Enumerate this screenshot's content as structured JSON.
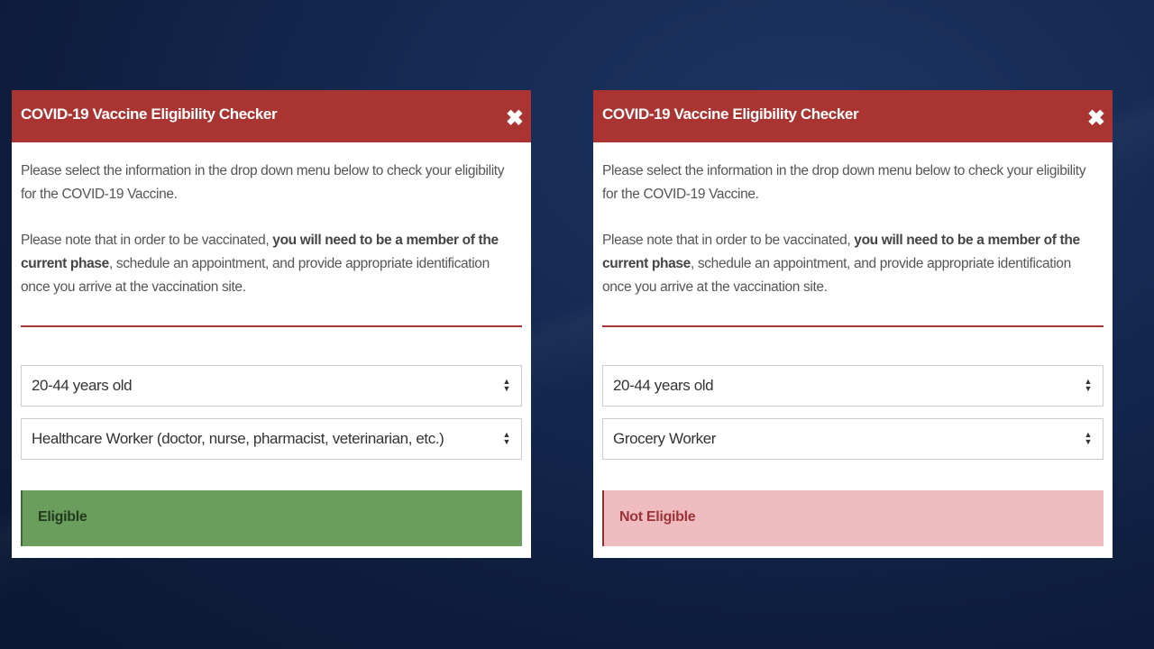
{
  "panels": [
    {
      "title": "COVID-19 Vaccine Eligibility Checker",
      "close_icon": "close-icon",
      "intro": "Please select the information in the drop down menu below to check your eligibility for the COVID-19 Vaccine.",
      "note_prefix": "Please note that in order to be vaccinated, ",
      "note_bold": "you will need to be a member of the current phase",
      "note_suffix": ", schedule an appointment, and provide appropriate identification once you arrive at the vaccination site.",
      "age_select": "20-44 years old",
      "occupation_select": "Healthcare Worker (doctor, nurse, pharmacist, veterinarian, etc.)",
      "result": "Eligible",
      "result_color": "#6b9e5c"
    },
    {
      "title": "COVID-19 Vaccine Eligibility Checker",
      "close_icon": "close-icon",
      "intro": "Please select the information in the drop down menu below to check your eligibility for the COVID-19 Vaccine.",
      "note_prefix": "Please note that in order to be vaccinated, ",
      "note_bold": "you will need to be a member of the current phase",
      "note_suffix": ", schedule an appointment, and provide appropriate identification once you arrive at the vaccination site.",
      "age_select": "20-44 years old",
      "occupation_select": "Grocery Worker",
      "result": "Not Eligible",
      "result_color": "#efbcc0"
    }
  ],
  "colors": {
    "header": "#a93431",
    "background": "#152a52"
  }
}
